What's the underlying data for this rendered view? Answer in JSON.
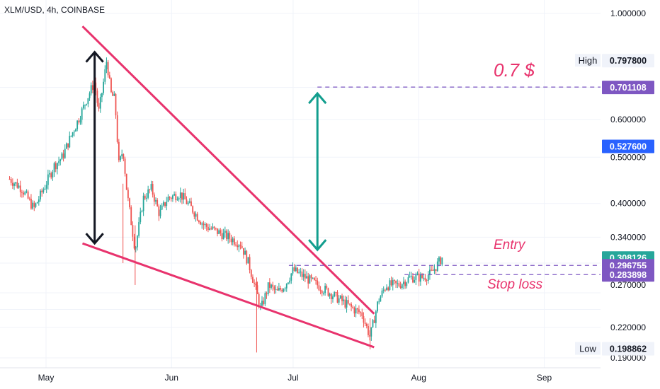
{
  "header": {
    "symbol_label": "XLM/USD, 4h, COINBASE"
  },
  "colors": {
    "up": "#26a69a",
    "down": "#ef5350",
    "pattern": "#e8336d",
    "target_arrow": "#129e8e",
    "level": "#7e57c2",
    "blue_tag": "#2962ff",
    "teal_tag": "#26a69a"
  },
  "chart_data": {
    "type": "candlestick",
    "title": "XLM/USD, 4h, COINBASE",
    "x_axis": {
      "ticks": [
        "May",
        "Jun",
        "Jul",
        "Aug",
        "Sep"
      ]
    },
    "y_axis": {
      "scale": "log",
      "range": [
        0.185,
        1.05
      ],
      "ticks": [
        "1.000000",
        "0.600000",
        "0.500000",
        "0.400000",
        "0.340000",
        "0.220000",
        "0.190000"
      ]
    },
    "grid": true,
    "price_series": [
      {
        "date": "Apr 22",
        "price": 0.45
      },
      {
        "date": "Apr 25",
        "price": 0.43
      },
      {
        "date": "Apr 28",
        "price": 0.39
      },
      {
        "date": "May 1",
        "price": 0.44
      },
      {
        "date": "May 3",
        "price": 0.48
      },
      {
        "date": "May 5",
        "price": 0.5
      },
      {
        "date": "May 7",
        "price": 0.55
      },
      {
        "date": "May 9",
        "price": 0.6
      },
      {
        "date": "May 11",
        "price": 0.66
      },
      {
        "date": "May 13",
        "price": 0.72
      },
      {
        "date": "May 14",
        "price": 0.62
      },
      {
        "date": "May 15",
        "price": 0.7
      },
      {
        "date": "May 16",
        "price": 0.8
      },
      {
        "date": "May 17",
        "price": 0.68
      },
      {
        "date": "May 18",
        "price": 0.66
      },
      {
        "date": "May 19",
        "price": 0.48
      },
      {
        "date": "May 20",
        "price": 0.52
      },
      {
        "date": "May 21",
        "price": 0.42
      },
      {
        "date": "May 23",
        "price": 0.32
      },
      {
        "date": "May 25",
        "price": 0.41
      },
      {
        "date": "May 27",
        "price": 0.43
      },
      {
        "date": "May 29",
        "price": 0.38
      },
      {
        "date": "May 31",
        "price": 0.41
      },
      {
        "date": "Jun 3",
        "price": 0.42
      },
      {
        "date": "Jun 6",
        "price": 0.39
      },
      {
        "date": "Jun 9",
        "price": 0.36
      },
      {
        "date": "Jun 12",
        "price": 0.35
      },
      {
        "date": "Jun 15",
        "price": 0.34
      },
      {
        "date": "Jun 18",
        "price": 0.33
      },
      {
        "date": "Jun 20",
        "price": 0.3
      },
      {
        "date": "Jun 22",
        "price": 0.26
      },
      {
        "date": "Jun 23",
        "price": 0.24
      },
      {
        "date": "Jun 25",
        "price": 0.27
      },
      {
        "date": "Jun 27",
        "price": 0.26
      },
      {
        "date": "Jun 29",
        "price": 0.27
      },
      {
        "date": "Jul 1",
        "price": 0.29
      },
      {
        "date": "Jul 4",
        "price": 0.28
      },
      {
        "date": "Jul 7",
        "price": 0.27
      },
      {
        "date": "Jul 10",
        "price": 0.26
      },
      {
        "date": "Jul 13",
        "price": 0.25
      },
      {
        "date": "Jul 16",
        "price": 0.24
      },
      {
        "date": "Jul 18",
        "price": 0.235
      },
      {
        "date": "Jul 20",
        "price": 0.21
      },
      {
        "date": "Jul 22",
        "price": 0.25
      },
      {
        "date": "Jul 24",
        "price": 0.27
      },
      {
        "date": "Jul 27",
        "price": 0.27
      },
      {
        "date": "Jul 30",
        "price": 0.28
      },
      {
        "date": "Aug 2",
        "price": 0.28
      },
      {
        "date": "Aug 4",
        "price": 0.285
      },
      {
        "date": "Aug 7",
        "price": 0.31
      }
    ],
    "overlays": {
      "upper_trendline": [
        {
          "date": "May 10",
          "price": 0.94
        },
        {
          "date": "Jul 21",
          "price": 0.235
        }
      ],
      "lower_trendline": [
        {
          "date": "May 10",
          "price": 0.33
        },
        {
          "date": "Jul 21",
          "price": 0.2
        }
      ],
      "height_arrow": {
        "date": "May 13",
        "from": 0.33,
        "to": 0.83
      },
      "target_arrow": {
        "date": "Jul 7",
        "from": 0.32,
        "to": 0.68
      },
      "target_level": 0.701108,
      "entry_level": 0.296755,
      "stop_level": 0.283898
    },
    "annotations": {
      "target_text": "0.7 $",
      "entry_text": "Entry",
      "stop_text": "Stop loss"
    },
    "price_tags": {
      "high": {
        "label": "High",
        "value": "0.797800",
        "price": 0.7978
      },
      "target": {
        "value": "0.701108",
        "price": 0.701108
      },
      "blue": {
        "value": "0.527600",
        "price": 0.5276
      },
      "last": {
        "value": "0.308126",
        "price": 0.308126
      },
      "entry": {
        "value": "0.296755",
        "price": 0.296755
      },
      "stop": {
        "value": "0.283898",
        "price": 0.283898
      },
      "low": {
        "label": "Low",
        "value": "0.198862",
        "price": 0.198862
      }
    }
  }
}
